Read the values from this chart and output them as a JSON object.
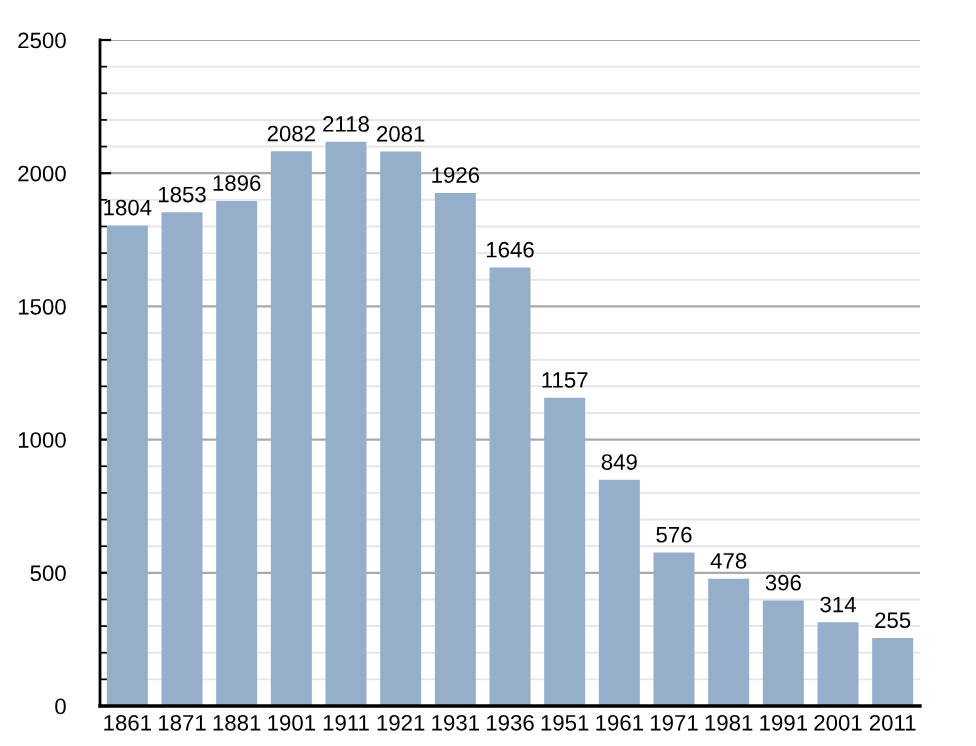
{
  "chart_data": {
    "type": "bar",
    "categories": [
      "1861",
      "1871",
      "1881",
      "1901",
      "1911",
      "1921",
      "1931",
      "1936",
      "1951",
      "1961",
      "1971",
      "1981",
      "1991",
      "2001",
      "2011"
    ],
    "values": [
      1804,
      1853,
      1896,
      2082,
      2118,
      2081,
      1926,
      1646,
      1157,
      849,
      576,
      478,
      396,
      314,
      255
    ],
    "color": "#95afca",
    "ylim": [
      0,
      2500
    ],
    "yticks": [
      0,
      500,
      1000,
      1500,
      2000,
      2500
    ],
    "grid": "y",
    "data_labels": true
  }
}
